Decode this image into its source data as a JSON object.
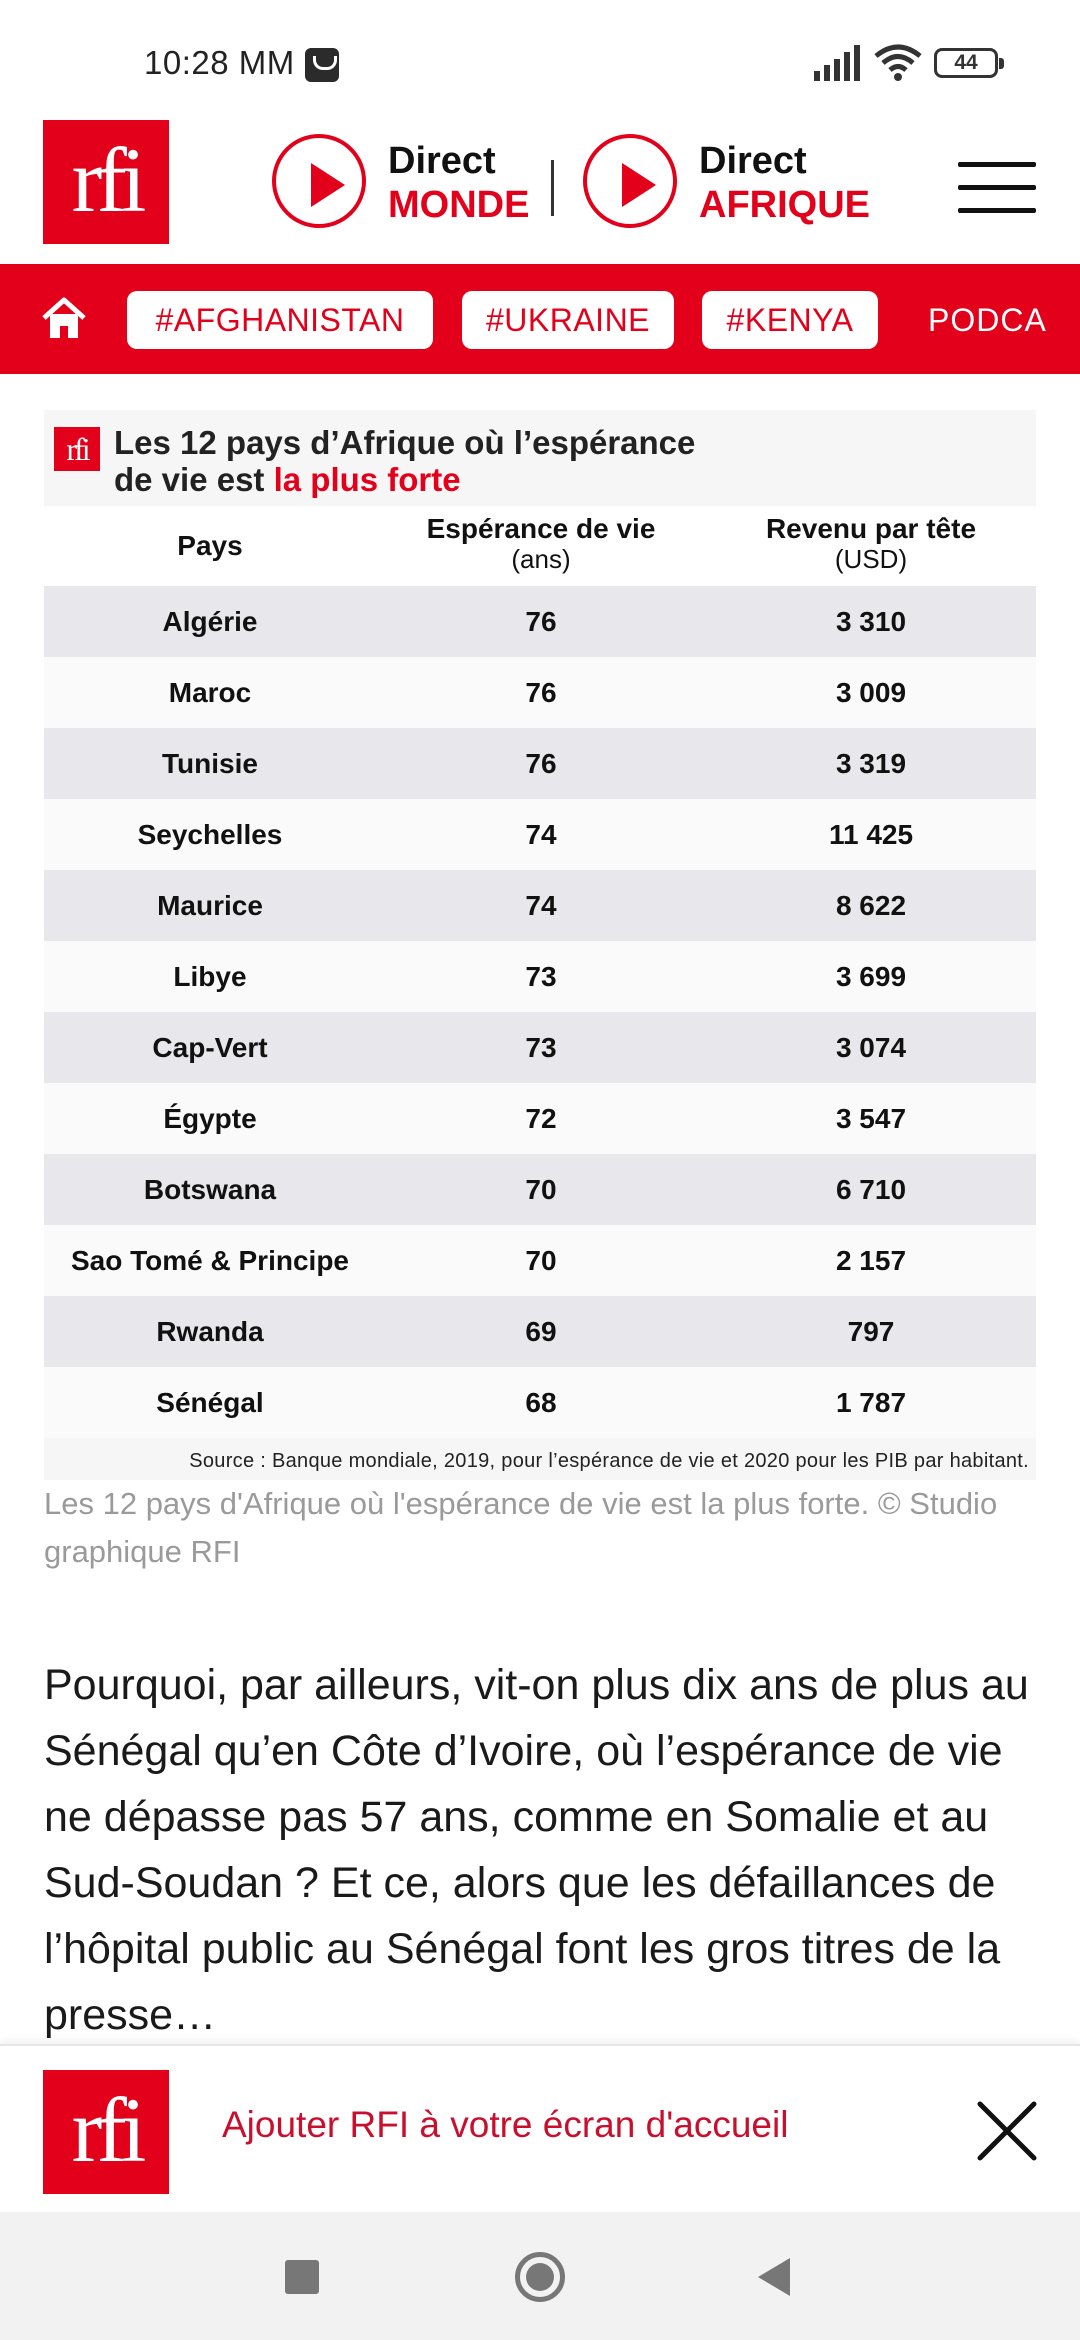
{
  "status": {
    "time": "10:28 MM",
    "battery": "44"
  },
  "header": {
    "logo": "rfi",
    "live": [
      {
        "line1": "Direct",
        "line2": "MONDE"
      },
      {
        "line1": "Direct",
        "line2": "AFRIQUE"
      }
    ]
  },
  "tags": [
    "#AFGHANISTAN",
    "#UKRAINE",
    "#KENYA"
  ],
  "tag_overflow": "PODCA",
  "infographic": {
    "logo": "rfi",
    "title_line1": "Les 12 pays d’Afrique où l’espérance",
    "title_line2_black": "de vie est ",
    "title_line2_red": "la plus forte",
    "columns": [
      {
        "label": "Pays",
        "sub": ""
      },
      {
        "label": "Espérance de vie",
        "sub": "(ans)"
      },
      {
        "label": "Revenu par tête",
        "sub": "(USD)"
      }
    ],
    "rows": [
      [
        "Algérie",
        "76",
        "3 310"
      ],
      [
        "Maroc",
        "76",
        "3 009"
      ],
      [
        "Tunisie",
        "76",
        "3 319"
      ],
      [
        "Seychelles",
        "74",
        "11 425"
      ],
      [
        "Maurice",
        "74",
        "8 622"
      ],
      [
        "Libye",
        "73",
        "3 699"
      ],
      [
        "Cap-Vert",
        "73",
        "3 074"
      ],
      [
        "Égypte",
        "72",
        "3 547"
      ],
      [
        "Botswana",
        "70",
        "6 710"
      ],
      [
        "Sao Tomé & Principe",
        "70",
        "2 157"
      ],
      [
        "Rwanda",
        "69",
        "797"
      ],
      [
        "Sénégal",
        "68",
        "1 787"
      ]
    ],
    "source": "Source : Banque mondiale, 2019, pour l’espérance de vie et 2020 pour les PIB par habitant."
  },
  "caption": "Les 12 pays d'Afrique où l'espérance de vie est la plus forte. © Studio graphique RFI",
  "article": "Pourquoi, par ailleurs, vit-on plus dix ans de plus au Sénégal qu’en Côte d’Ivoire, où l’espérance de vie ne dépasse pas 57 ans, comme en Somalie et au Sud-Soudan ? Et ce, alors que les défaillances de l’hôpital public au Sénégal font les gros titres de la presse…",
  "banner": {
    "logo": "rfi",
    "text": "Ajouter RFI à votre écran d'accueil"
  },
  "colors": {
    "brand_red": "#e2001a"
  }
}
